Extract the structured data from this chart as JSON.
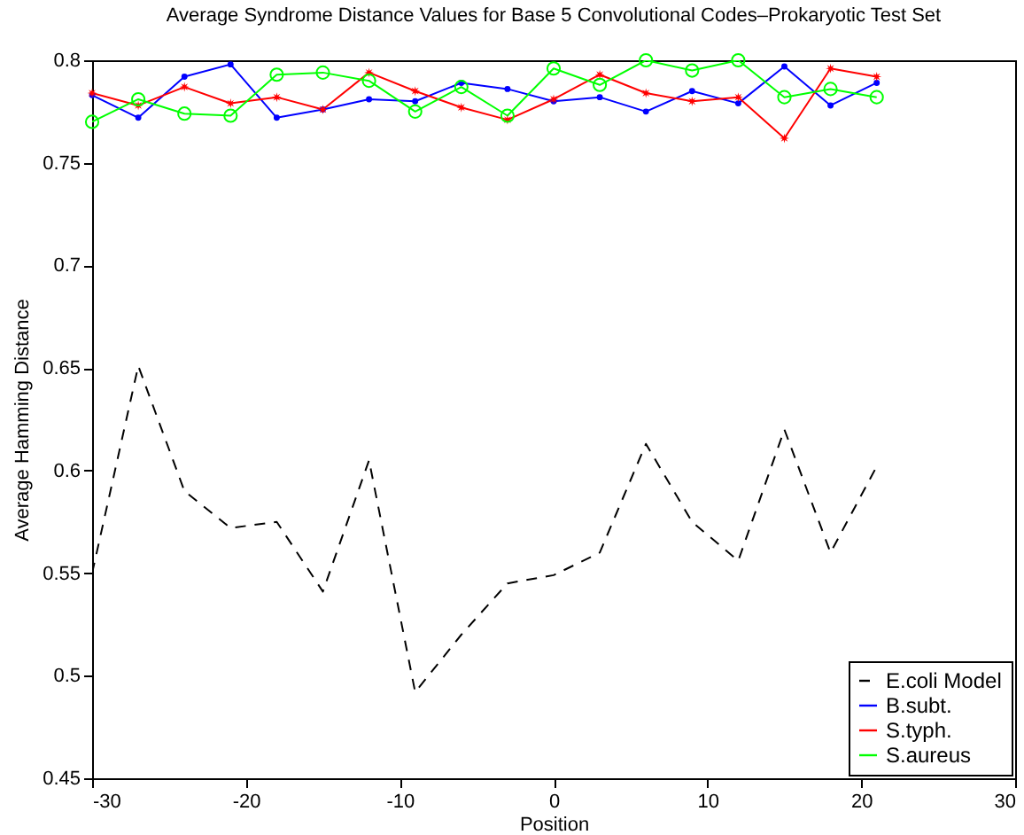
{
  "chart_data": {
    "type": "line",
    "title": "Average Syndrome Distance Values for Base 5 Convolutional Codes–Prokaryotic Test Set",
    "xlabel": "Position",
    "ylabel": "Average Hamming Distance",
    "x": [
      -30,
      -27,
      -24,
      -21,
      -18,
      -15,
      -12,
      -9,
      -6,
      -3,
      0,
      3,
      6,
      9,
      12,
      15,
      18,
      21
    ],
    "series": [
      {
        "name": "E.coli Model",
        "color": "#000000",
        "line_style": "dashed",
        "marker": "none",
        "values": [
          0.55,
          0.651,
          0.59,
          0.572,
          0.575,
          0.541,
          0.605,
          0.492,
          0.52,
          0.545,
          0.549,
          0.56,
          0.613,
          0.575,
          0.556,
          0.62,
          0.56,
          0.602
        ]
      },
      {
        "name": "B.subt.",
        "color": "#0000ff",
        "line_style": "solid",
        "marker": "circle",
        "values": [
          0.783,
          0.772,
          0.792,
          0.798,
          0.772,
          0.776,
          0.781,
          0.78,
          0.789,
          0.786,
          0.78,
          0.782,
          0.775,
          0.785,
          0.779,
          0.797,
          0.778,
          0.789
        ]
      },
      {
        "name": "S.typh.",
        "color": "#ff0000",
        "line_style": "solid",
        "marker": "star",
        "values": [
          0.784,
          0.778,
          0.787,
          0.779,
          0.782,
          0.776,
          0.794,
          0.785,
          0.777,
          0.771,
          0.781,
          0.793,
          0.784,
          0.78,
          0.782,
          0.762,
          0.796,
          0.792
        ]
      },
      {
        "name": "S.aureus",
        "color": "#00ff00",
        "line_style": "solid",
        "marker": "circle",
        "values": [
          0.77,
          0.781,
          0.774,
          0.773,
          0.793,
          0.794,
          0.79,
          0.775,
          0.787,
          0.773,
          0.796,
          0.788,
          0.8,
          0.795,
          0.8,
          0.782,
          0.786,
          0.782
        ]
      }
    ],
    "xlim": [
      -30,
      30
    ],
    "xticks": [
      -30,
      -20,
      -10,
      0,
      10,
      20,
      30
    ],
    "ylim": [
      0.45,
      0.8
    ],
    "yticks": [
      0.45,
      0.5,
      0.55,
      0.6,
      0.65,
      0.7,
      0.75,
      0.8
    ],
    "grid": false,
    "legend": "bottom right"
  }
}
